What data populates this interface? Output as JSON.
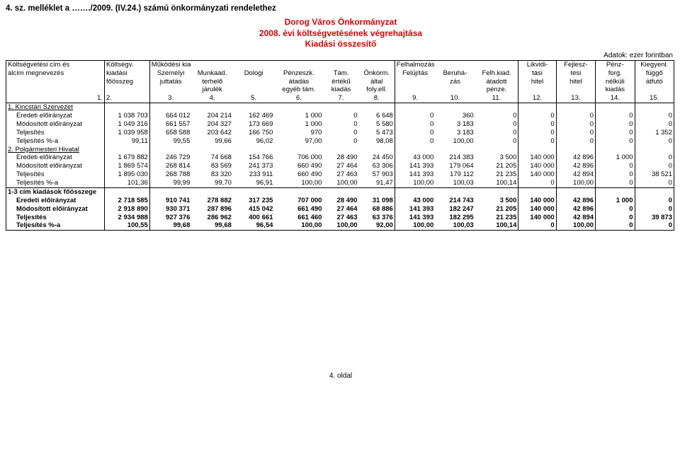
{
  "top_line": "4. sz. melléklet a ……./2009. (IV.24.) számú önkormányzati rendelethez",
  "title1": "Dorog Város Önkormányzat",
  "title2": "2008. évi költségvetésének végrehajtása",
  "title3": "Kiadási összesítő",
  "units": "Adatok: ezer forintban",
  "header": {
    "r1": [
      "Költségvetési cím és",
      "Költségv.",
      "Működési kiadások",
      "",
      "",
      "",
      "",
      "",
      "Felhalmozási kiadások",
      "",
      "",
      "Likvidi-",
      "Fejlesz-",
      "Pénz-",
      "Kiegyenl."
    ],
    "r2": [
      "alcím megnevezés",
      "kiadási",
      "Személyi",
      "Munkaad.",
      "Dologi",
      "Pénzeszk.",
      "Tám.",
      "Önkorm.",
      "Felújítás",
      "Beruhá-",
      "Felh.kiad.",
      "tási",
      "tési",
      "forg.",
      "függő"
    ],
    "r3": [
      "",
      "főösszeg",
      "juttatás",
      "terhelő",
      "",
      "átadás",
      "értékű",
      "által",
      "",
      "zás",
      "átadott",
      "hitel",
      "hitel",
      "nélküli",
      "átfutó"
    ],
    "r4": [
      "",
      "",
      "",
      "járulék",
      "",
      "egyéb tám.",
      "kiadás",
      "foly.ell.",
      "",
      "",
      "pénze.",
      "",
      "",
      "kiadás",
      ""
    ],
    "nums": [
      "1.",
      "2.",
      "3.",
      "4.",
      "5.",
      "6.",
      "7.",
      "8.",
      "9.",
      "10.",
      "11.",
      "12.",
      "13.",
      "14.",
      "15."
    ]
  },
  "rows": [
    {
      "type": "section",
      "label": "1. Kincstári Szervezet"
    },
    {
      "type": "data",
      "label": "Eredeti előirányzat",
      "v": [
        "1 038 703",
        "664 012",
        "204 214",
        "162 469",
        "1 000",
        "0",
        "6 648",
        "0",
        "360",
        "0",
        "0",
        "0",
        "0",
        "0"
      ]
    },
    {
      "type": "data",
      "label": "Módosított előirányzat",
      "v": [
        "1 049 316",
        "661 557",
        "204 327",
        "173 669",
        "1 000",
        "0",
        "5 580",
        "0",
        "3 183",
        "0",
        "0",
        "0",
        "0",
        "0"
      ]
    },
    {
      "type": "data",
      "label": "Teljesítés",
      "v": [
        "1 039 958",
        "658 588",
        "203 642",
        "166 750",
        "970",
        "0",
        "5 473",
        "0",
        "3 183",
        "0",
        "0",
        "0",
        "0",
        "1 352"
      ]
    },
    {
      "type": "data",
      "label": "Teljesítés %-a",
      "v": [
        "99,11",
        "99,55",
        "99,66",
        "96,02",
        "97,00",
        "0",
        "98,08",
        "0",
        "100,00",
        "0",
        "0",
        "0",
        "0",
        "0"
      ]
    },
    {
      "type": "section",
      "label": "2. Polgármesteri Hivatal"
    },
    {
      "type": "data",
      "label": "Eredeti előirányzat",
      "v": [
        "1 679 882",
        "246 729",
        "74 668",
        "154 766",
        "706 000",
        "28 490",
        "24 450",
        "43 000",
        "214 383",
        "3 500",
        "140 000",
        "42 896",
        "1 000",
        "0"
      ]
    },
    {
      "type": "data",
      "label": "Módosított előirányzat",
      "v": [
        "1 869 574",
        "268 814",
        "83 569",
        "241 373",
        "660 490",
        "27 464",
        "63 306",
        "141 393",
        "179 064",
        "21 205",
        "140 000",
        "42 896",
        "0",
        "0"
      ]
    },
    {
      "type": "data",
      "label": "Teljesítés",
      "v": [
        "1 895 030",
        "268 788",
        "83 320",
        "233 911",
        "660 490",
        "27 463",
        "57 903",
        "141 393",
        "179 112",
        "21 235",
        "140 000",
        "42 894",
        "0",
        "38 521"
      ]
    },
    {
      "type": "data",
      "label": "Teljesítés %-a",
      "v": [
        "101,36",
        "99,99",
        "99,70",
        "96,91",
        "100,00",
        "100,00",
        "91,47",
        "100,00",
        "100,03",
        "100,14",
        "0",
        "100,00",
        "0",
        "0"
      ]
    }
  ],
  "summary_title": "1-3 cím kiadások főösszege",
  "summary": [
    {
      "label": "Eredeti előirányzat",
      "v": [
        "2 718 585",
        "910 741",
        "278 882",
        "317 235",
        "707 000",
        "28 490",
        "31 098",
        "43 000",
        "214 743",
        "3 500",
        "140 000",
        "42 896",
        "1 000",
        "0"
      ]
    },
    {
      "label": "Módosított előirányzat",
      "v": [
        "2 918 890",
        "930 371",
        "287 896",
        "415 042",
        "661 490",
        "27 464",
        "68 886",
        "141 393",
        "182 247",
        "21 205",
        "140 000",
        "42 896",
        "0",
        "0"
      ]
    },
    {
      "label": "Teljesítés",
      "v": [
        "2 934 988",
        "927 376",
        "286 962",
        "400 661",
        "661 460",
        "27 463",
        "63 376",
        "141 393",
        "182 295",
        "21 235",
        "140 000",
        "42 894",
        "0",
        "39 873"
      ]
    },
    {
      "label": "Teljesítés %-a",
      "v": [
        "100,55",
        "99,68",
        "99,68",
        "96,54",
        "100,00",
        "100,00",
        "92,00",
        "100,00",
        "100,03",
        "100,14",
        "0",
        "100,00",
        "0",
        "0"
      ]
    }
  ],
  "footer": "4. oldal",
  "colors": {
    "title": "#d40000",
    "text": "#000000",
    "bg": "#ffffff",
    "border": "#000000"
  }
}
